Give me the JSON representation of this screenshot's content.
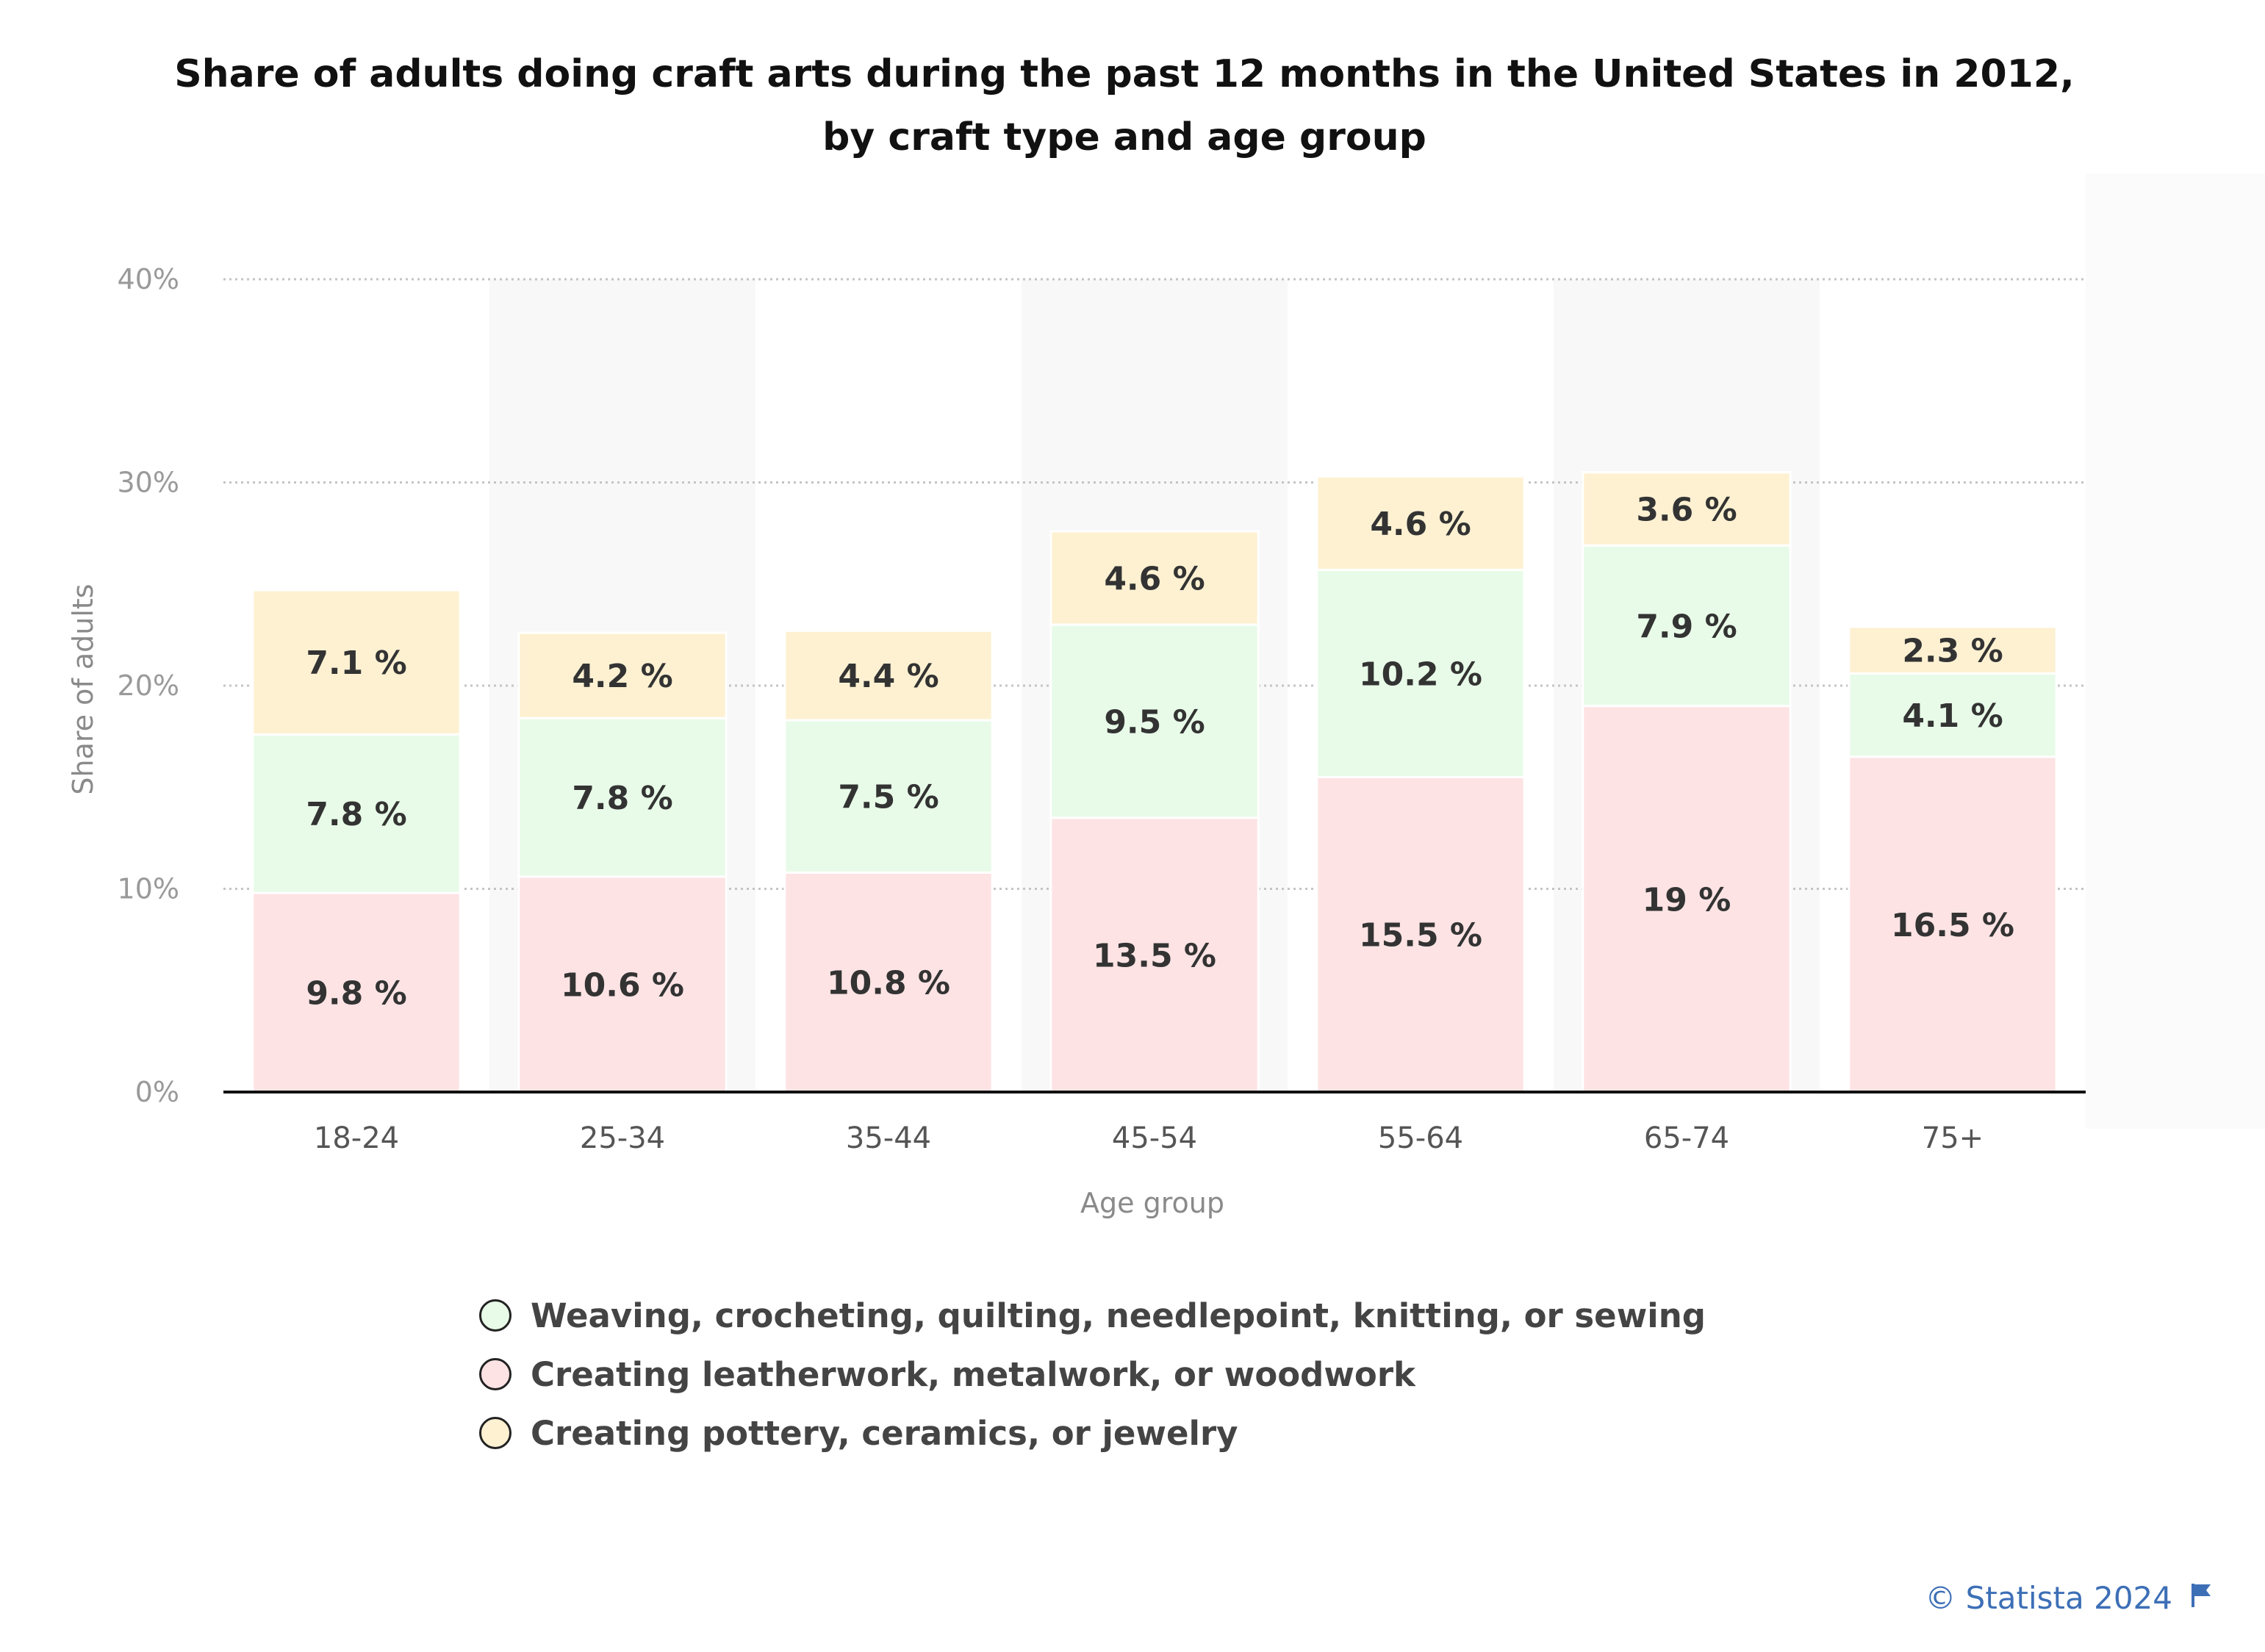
{
  "title": "Share of adults doing craft arts during the past 12 months in the United States in 2012, by craft type and age group",
  "credit": "© Statista 2024",
  "chart_data": {
    "type": "bar",
    "stacked": true,
    "categories": [
      "18-24",
      "25-34",
      "35-44",
      "45-54",
      "55-64",
      "65-74",
      "75+"
    ],
    "series": [
      {
        "name": "Creating leatherwork, metalwork, or woodwork",
        "color": "#fde3e4",
        "values": [
          9.8,
          10.6,
          10.8,
          13.5,
          15.5,
          19,
          16.5
        ],
        "labels": [
          "9.8 %",
          "10.6 %",
          "10.8 %",
          "13.5 %",
          "15.5 %",
          "19 %",
          "16.5 %"
        ]
      },
      {
        "name": "Weaving, crocheting, quilting, needlepoint, knitting, or sewing",
        "color": "#e8fbe8",
        "values": [
          7.8,
          7.8,
          7.5,
          9.5,
          10.2,
          7.9,
          4.1
        ],
        "labels": [
          "7.8 %",
          "7.8 %",
          "7.5 %",
          "9.5 %",
          "10.2 %",
          "7.9 %",
          "4.1 %"
        ]
      },
      {
        "name": "Creating pottery, ceramics, or jewelry",
        "color": "#fdf1d2",
        "values": [
          7.1,
          4.2,
          4.4,
          4.6,
          4.6,
          3.6,
          2.3
        ],
        "labels": [
          "7.1 %",
          "4.2 %",
          "4.4 %",
          "4.6 %",
          "4.6 %",
          "3.6 %",
          "2.3 %"
        ]
      }
    ],
    "legend_order": [
      1,
      0,
      2
    ],
    "xlabel": "Age group",
    "ylabel": "Share of adults",
    "ylim": [
      0,
      40
    ],
    "yticks": [
      "0%",
      "10%",
      "20%",
      "30%",
      "40%"
    ],
    "grid": true,
    "legend_position": "bottom"
  }
}
